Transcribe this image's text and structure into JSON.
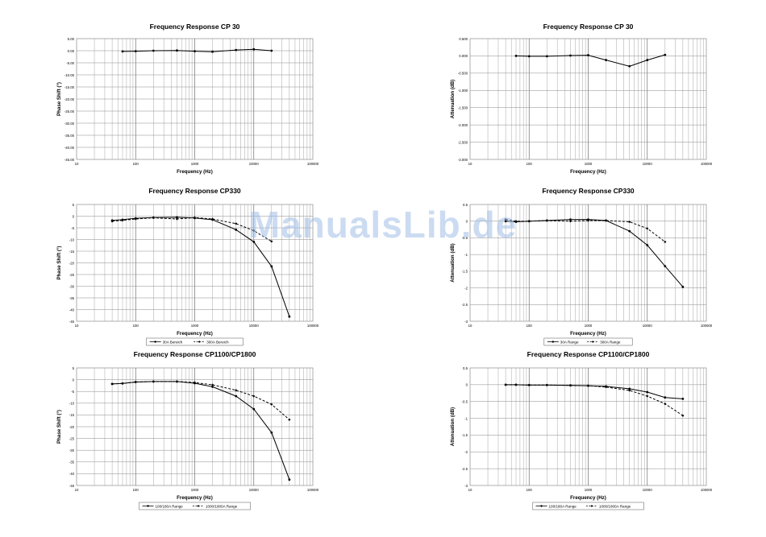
{
  "watermark": "ManualsLib.de",
  "chart_data": [
    {
      "type": "line",
      "title": "Frequency Response CP 30",
      "xlabel": "Frequency (Hz)",
      "ylabel": "Phase Shift (°)",
      "x_scale": "log",
      "xlim": [
        10,
        100000
      ],
      "x_ticks": [
        10,
        100,
        1000,
        10000,
        100000
      ],
      "ylim": [
        -45,
        5
      ],
      "y_ticks": [
        5,
        0,
        -5,
        -10,
        -15,
        -20,
        -25,
        -30,
        -35,
        -40,
        -45
      ],
      "y_tick_labels": [
        "5.00",
        "0.00",
        "-5.00",
        "-10.00",
        "-15.00",
        "-20.00",
        "-25.00",
        "-30.00",
        "-35.00",
        "-40.00",
        "-45.00"
      ],
      "grid": true,
      "legend": [],
      "series": [
        {
          "dashed": false,
          "x": [
            60,
            100,
            200,
            500,
            1000,
            2000,
            5000,
            10000,
            20000
          ],
          "y": [
            -0.3,
            -0.2,
            0.0,
            0.1,
            -0.2,
            -0.4,
            0.3,
            0.6,
            0.0
          ]
        }
      ]
    },
    {
      "type": "line",
      "title": "Frequency Response CP 30",
      "xlabel": "Frequency (Hz)",
      "ylabel": "Attenuation (dB)",
      "x_scale": "log",
      "xlim": [
        10,
        100000
      ],
      "x_ticks": [
        10,
        100,
        1000,
        10000,
        100000
      ],
      "ylim": [
        -3,
        0.5
      ],
      "y_ticks": [
        0.5,
        0,
        -0.5,
        -1,
        -1.5,
        -2,
        -2.5,
        -3
      ],
      "y_tick_labels": [
        "0.500",
        "0.000",
        "-0.500",
        "-1.000",
        "-1.500",
        "-2.000",
        "-2.500",
        "-3.000"
      ],
      "grid": true,
      "legend": [],
      "series": [
        {
          "dashed": false,
          "x": [
            60,
            100,
            200,
            500,
            1000,
            2000,
            5000,
            10000,
            20000
          ],
          "y": [
            0.0,
            -0.01,
            -0.01,
            0.01,
            0.02,
            -0.12,
            -0.3,
            -0.12,
            0.03
          ]
        }
      ]
    },
    {
      "type": "line",
      "title": "Frequency Response CP330",
      "xlabel": "Frequency (Hz)",
      "ylabel": "Phase Shift (°)",
      "x_scale": "log",
      "xlim": [
        10,
        100000
      ],
      "x_ticks": [
        10,
        100,
        1000,
        10000,
        100000
      ],
      "ylim": [
        -45,
        5
      ],
      "y_ticks": [
        5,
        0,
        -5,
        -10,
        -15,
        -20,
        -25,
        -30,
        -35,
        -40,
        -45
      ],
      "y_tick_labels": [
        "5",
        "0",
        "-5",
        "-10",
        "-15",
        "-20",
        "-25",
        "-30",
        "-35",
        "-40",
        "-45"
      ],
      "grid": true,
      "legend": [
        "30A Bereich",
        "300A Bereich"
      ],
      "series": [
        {
          "name": "30A Bereich",
          "dashed": false,
          "x": [
            40,
            60,
            100,
            200,
            500,
            1000,
            2000,
            5000,
            10000,
            20000,
            40000
          ],
          "y": [
            -1.8,
            -1.5,
            -0.9,
            -0.6,
            -0.5,
            -0.8,
            -1.5,
            -5.8,
            -11.0,
            -21.5,
            -43.0
          ]
        },
        {
          "name": "300A Bereich",
          "dashed": true,
          "x": [
            40,
            60,
            100,
            200,
            500,
            1000,
            2000,
            5000,
            10000,
            20000
          ],
          "y": [
            -2.2,
            -1.8,
            -1.2,
            -0.7,
            -1.2,
            -0.6,
            -1.2,
            -3.2,
            -6.2,
            -10.8
          ]
        }
      ]
    },
    {
      "type": "line",
      "title": "Frequency Response CP330",
      "xlabel": "Frequency (Hz)",
      "ylabel": "Attenuation (dB)",
      "x_scale": "log",
      "xlim": [
        10,
        100000
      ],
      "x_ticks": [
        10,
        100,
        1000,
        10000,
        100000
      ],
      "ylim": [
        -3,
        0.5
      ],
      "y_ticks": [
        0.5,
        0,
        -0.5,
        -1,
        -1.5,
        -2,
        -2.5,
        -3
      ],
      "y_tick_labels": [
        "0.5",
        "0",
        "-0.5",
        "-1",
        "-1.5",
        "-2",
        "-2.5",
        "-3"
      ],
      "grid": true,
      "legend": [
        "30A Range",
        "300A Range"
      ],
      "series": [
        {
          "name": "30A Range",
          "dashed": false,
          "x": [
            40,
            60,
            100,
            200,
            500,
            1000,
            2000,
            5000,
            10000,
            20000,
            40000
          ],
          "y": [
            0.0,
            -0.02,
            0.0,
            0.02,
            0.05,
            0.05,
            0.02,
            -0.3,
            -0.72,
            -1.35,
            -1.97
          ]
        },
        {
          "name": "300A Range",
          "dashed": true,
          "x": [
            40,
            60,
            100,
            200,
            500,
            1000,
            2000,
            5000,
            10000,
            20000
          ],
          "y": [
            0.05,
            0.0,
            0.0,
            0.02,
            0.0,
            0.02,
            0.02,
            -0.02,
            -0.22,
            -0.62
          ]
        }
      ]
    },
    {
      "type": "line",
      "title": "Frequency Response CP1100/CP1800",
      "xlabel": "Frequency (Hz)",
      "ylabel": "Phase Shift (°)",
      "x_scale": "log",
      "xlim": [
        10,
        100000
      ],
      "x_ticks": [
        10,
        100,
        1000,
        10000,
        100000
      ],
      "ylim": [
        -45,
        5
      ],
      "y_ticks": [
        5,
        0,
        -5,
        -10,
        -15,
        -20,
        -25,
        -30,
        -35,
        -40,
        -45
      ],
      "y_tick_labels": [
        "5",
        "0",
        "-5",
        "-10",
        "-15",
        "-20",
        "-25",
        "-30",
        "-35",
        "-40",
        "-45"
      ],
      "grid": true,
      "legend": [
        "100/180A Range",
        "1000/1800A Range"
      ],
      "series": [
        {
          "name": "100/180A Range",
          "dashed": false,
          "x": [
            40,
            60,
            100,
            200,
            500,
            1000,
            2000,
            5000,
            10000,
            20000,
            40000
          ],
          "y": [
            -1.8,
            -1.6,
            -1.0,
            -0.8,
            -0.8,
            -1.5,
            -3.0,
            -7.0,
            -12.5,
            -22.5,
            -42.5
          ]
        },
        {
          "name": "1000/1800A Range",
          "dashed": true,
          "x": [
            40,
            60,
            100,
            200,
            500,
            1000,
            2000,
            5000,
            10000,
            20000,
            40000
          ],
          "y": [
            -1.8,
            -1.6,
            -1.0,
            -0.8,
            -0.8,
            -1.2,
            -2.2,
            -4.5,
            -7.0,
            -10.5,
            -17.0
          ]
        }
      ]
    },
    {
      "type": "line",
      "title": "Frequency Response CP1100/CP1800",
      "xlabel": "Frequency (Hz)",
      "ylabel": "Attenuation (dB)",
      "x_scale": "log",
      "xlim": [
        10,
        100000
      ],
      "x_ticks": [
        10,
        100,
        1000,
        10000,
        100000
      ],
      "ylim": [
        -3,
        0.5
      ],
      "y_ticks": [
        0.5,
        0,
        -0.5,
        -1,
        -1.5,
        -2,
        -2.5,
        -3
      ],
      "y_tick_labels": [
        "0.5",
        "0",
        "-0.5",
        "-1",
        "-1.5",
        "-2",
        "-2.5",
        "-3"
      ],
      "grid": true,
      "legend": [
        "100/180A Range",
        "1000/1800A Range"
      ],
      "series": [
        {
          "name": "100/180A Range",
          "dashed": false,
          "x": [
            40,
            60,
            100,
            200,
            500,
            1000,
            2000,
            5000,
            10000,
            20000,
            40000
          ],
          "y": [
            0.0,
            0.0,
            -0.01,
            -0.01,
            -0.02,
            -0.03,
            -0.05,
            -0.12,
            -0.22,
            -0.38,
            -0.42
          ]
        },
        {
          "name": "1000/1800A Range",
          "dashed": true,
          "x": [
            40,
            60,
            100,
            200,
            500,
            1000,
            2000,
            5000,
            10000,
            20000,
            40000
          ],
          "y": [
            0.0,
            0.0,
            -0.01,
            -0.01,
            -0.02,
            -0.03,
            -0.07,
            -0.17,
            -0.34,
            -0.57,
            -0.92
          ]
        }
      ]
    }
  ]
}
